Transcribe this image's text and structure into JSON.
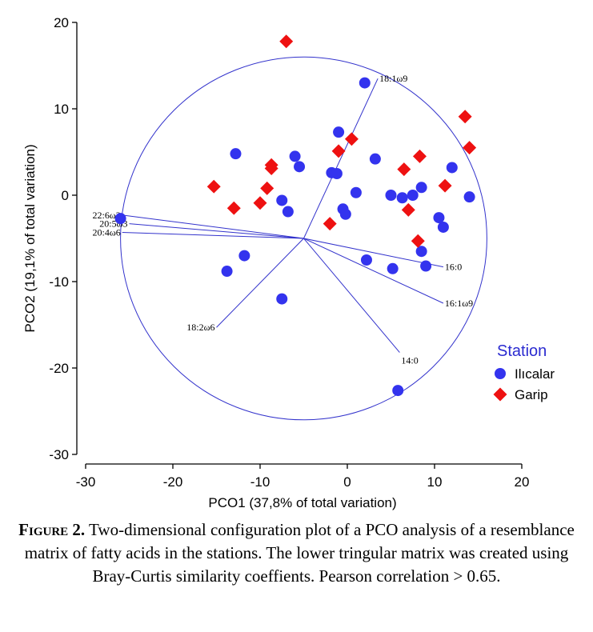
{
  "chart_data": {
    "type": "scatter",
    "title": "",
    "xlabel": "PCO1 (37,8% of total variation)",
    "ylabel": "PCO2 (19,1% of total variation)",
    "xlim": [
      -30,
      20
    ],
    "ylim": [
      -30,
      20
    ],
    "xticks": [
      -30,
      -20,
      -10,
      0,
      10,
      20
    ],
    "yticks": [
      -30,
      -20,
      -10,
      0,
      10,
      20
    ],
    "xtick_labels": [
      "-30",
      "-20",
      "-10",
      "0",
      "10",
      "20"
    ],
    "ytick_labels": [
      "-30",
      "-20",
      "-10",
      "0",
      "10",
      "20"
    ],
    "grid": false,
    "legend": {
      "title": "Station",
      "position": "right"
    },
    "series": [
      {
        "name": "Ilıcalar",
        "marker": "circle",
        "color": "#3333ee",
        "points": [
          [
            2,
            13
          ],
          [
            -1,
            7.3
          ],
          [
            -12.8,
            4.8
          ],
          [
            -6,
            4.5
          ],
          [
            -5.5,
            3.3
          ],
          [
            -1.8,
            2.6
          ],
          [
            -1.2,
            2.5
          ],
          [
            3.2,
            4.2
          ],
          [
            12,
            3.2
          ],
          [
            1,
            0.3
          ],
          [
            5,
            0
          ],
          [
            6.3,
            -0.3
          ],
          [
            7.5,
            0
          ],
          [
            8.5,
            0.9
          ],
          [
            14,
            -0.2
          ],
          [
            -7.5,
            -0.6
          ],
          [
            -6.8,
            -1.9
          ],
          [
            -0.5,
            -1.6
          ],
          [
            -0.2,
            -2.2
          ],
          [
            10.5,
            -2.6
          ],
          [
            11,
            -3.7
          ],
          [
            -26,
            -2.7
          ],
          [
            -11.8,
            -7
          ],
          [
            -13.8,
            -8.8
          ],
          [
            2.2,
            -7.5
          ],
          [
            5.2,
            -8.5
          ],
          [
            8.5,
            -6.5
          ],
          [
            9,
            -8.2
          ],
          [
            -7.5,
            -12
          ],
          [
            5.8,
            -22.6
          ]
        ]
      },
      {
        "name": "Garip",
        "marker": "diamond",
        "color": "#ee1111",
        "points": [
          [
            -7,
            17.8
          ],
          [
            13.5,
            9.1
          ],
          [
            14,
            5.5
          ],
          [
            -1,
            5.1
          ],
          [
            0.5,
            6.5
          ],
          [
            -8.7,
            3.5
          ],
          [
            -8.7,
            3.1
          ],
          [
            6.5,
            3
          ],
          [
            8.3,
            4.5
          ],
          [
            11.2,
            1.1
          ],
          [
            -15.3,
            1
          ],
          [
            -9.2,
            0.8
          ],
          [
            -10,
            -0.9
          ],
          [
            -13,
            -1.5
          ],
          [
            7,
            -1.7
          ],
          [
            -2,
            -3.3
          ],
          [
            8.1,
            -5.3
          ]
        ]
      }
    ],
    "vector_origin": [
      -5,
      -5
    ],
    "vectors": [
      {
        "label": "18:1ω9",
        "end": [
          3.5,
          13.5
        ]
      },
      {
        "label": "22:6ω3",
        "end": [
          -25.8,
          -2.3
        ]
      },
      {
        "label": "20:5ω3",
        "end": [
          -25,
          -3.3
        ]
      },
      {
        "label": "20:4ω6",
        "end": [
          -25.8,
          -4.3
        ]
      },
      {
        "label": "18:2ω6",
        "end": [
          -15,
          -15.3
        ]
      },
      {
        "label": "16:0",
        "end": [
          11,
          -8.3
        ]
      },
      {
        "label": "16:1ω9",
        "end": [
          11,
          -12.5
        ]
      },
      {
        "label": "14:0",
        "end": [
          6,
          -18.2
        ]
      }
    ],
    "circle": {
      "center": [
        -5,
        -5
      ],
      "radius": 21
    }
  },
  "caption": {
    "label": "Figure 2.",
    "text": "Two-dimensional configuration plot of a PCO analysis of a resemblance matrix of fatty acids in the stations. The lower tringular matrix was created using Bray-Curtis similarity coeffients. Pearson correlation > 0.65."
  }
}
